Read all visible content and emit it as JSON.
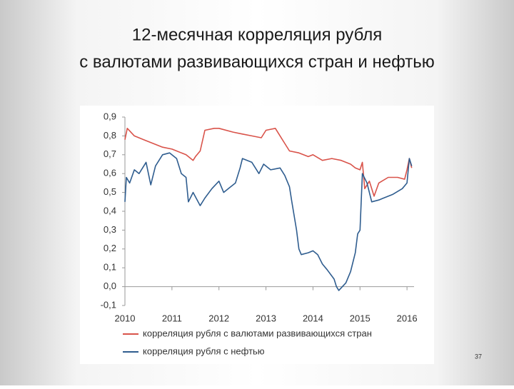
{
  "chart_data": {
    "type": "line",
    "title": [
      "12-месячная корреляция рубля",
      "с валютами развивающихся стран и нефтью"
    ],
    "xlim": [
      2010,
      2016.15
    ],
    "xticks": [
      2010,
      2011,
      2012,
      2013,
      2014,
      2015,
      2016
    ],
    "ylim": [
      -0.1,
      0.9
    ],
    "yticks": [
      {
        "value": 0.9,
        "label": "0,9"
      },
      {
        "value": 0.8,
        "label": "0,8"
      },
      {
        "value": 0.7,
        "label": "0,7"
      },
      {
        "value": 0.6,
        "label": "0,6"
      },
      {
        "value": 0.5,
        "label": "0,5"
      },
      {
        "value": 0.4,
        "label": "0,4"
      },
      {
        "value": 0.3,
        "label": "0,3"
      },
      {
        "value": 0.2,
        "label": "0,2"
      },
      {
        "value": 0.1,
        "label": "0,1"
      },
      {
        "value": 0,
        "label": "0,0"
      },
      {
        "value": -0.1,
        "label": "-0,1"
      }
    ],
    "grid": false,
    "series": [
      {
        "name": "корреляция рубля с валютами развивающихся стран",
        "color": "#d9534a",
        "x": [
          2010.0,
          2010.05,
          2010.2,
          2010.4,
          2010.6,
          2010.8,
          2011.0,
          2011.1,
          2011.3,
          2011.45,
          2011.5,
          2011.6,
          2011.7,
          2011.9,
          2012.0,
          2012.3,
          2012.5,
          2012.7,
          2012.9,
          2013.0,
          2013.2,
          2013.3,
          2013.4,
          2013.5,
          2013.7,
          2013.9,
          2014.0,
          2014.2,
          2014.4,
          2014.6,
          2014.8,
          2014.9,
          2015.0,
          2015.05,
          2015.1,
          2015.2,
          2015.3,
          2015.4,
          2015.6,
          2015.8,
          2015.95,
          2016.0,
          2016.05,
          2016.1
        ],
        "values": [
          0.78,
          0.84,
          0.8,
          0.78,
          0.76,
          0.74,
          0.73,
          0.72,
          0.7,
          0.67,
          0.69,
          0.72,
          0.83,
          0.84,
          0.84,
          0.82,
          0.81,
          0.8,
          0.79,
          0.83,
          0.84,
          0.8,
          0.76,
          0.72,
          0.71,
          0.69,
          0.7,
          0.67,
          0.68,
          0.67,
          0.65,
          0.63,
          0.62,
          0.66,
          0.52,
          0.56,
          0.48,
          0.55,
          0.58,
          0.58,
          0.57,
          0.62,
          0.68,
          0.63
        ]
      },
      {
        "name": "корреляция рубля с нефтью",
        "color": "#2f5d8f",
        "x": [
          2010.0,
          2010.03,
          2010.1,
          2010.2,
          2010.3,
          2010.45,
          2010.55,
          2010.65,
          2010.8,
          2010.95,
          2011.1,
          2011.2,
          2011.3,
          2011.35,
          2011.45,
          2011.6,
          2011.7,
          2011.85,
          2012.0,
          2012.1,
          2012.2,
          2012.35,
          2012.45,
          2012.5,
          2012.7,
          2012.85,
          2012.95,
          2013.1,
          2013.3,
          2013.4,
          2013.5,
          2013.55,
          2013.65,
          2013.7,
          2013.75,
          2013.9,
          2014.0,
          2014.1,
          2014.2,
          2014.3,
          2014.45,
          2014.5,
          2014.55,
          2014.7,
          2014.8,
          2014.9,
          2014.95,
          2015.0,
          2015.05,
          2015.15,
          2015.25,
          2015.4,
          2015.5,
          2015.7,
          2015.9,
          2016.0,
          2016.05,
          2016.1
        ],
        "values": [
          0.45,
          0.58,
          0.55,
          0.62,
          0.6,
          0.66,
          0.54,
          0.64,
          0.7,
          0.71,
          0.68,
          0.6,
          0.58,
          0.45,
          0.5,
          0.43,
          0.47,
          0.52,
          0.56,
          0.5,
          0.52,
          0.55,
          0.63,
          0.68,
          0.66,
          0.6,
          0.65,
          0.62,
          0.63,
          0.59,
          0.53,
          0.45,
          0.3,
          0.2,
          0.17,
          0.18,
          0.19,
          0.17,
          0.12,
          0.09,
          0.04,
          0.0,
          -0.02,
          0.02,
          0.08,
          0.18,
          0.28,
          0.3,
          0.6,
          0.55,
          0.45,
          0.46,
          0.47,
          0.49,
          0.52,
          0.55,
          0.68,
          0.64
        ]
      }
    ]
  },
  "page_number": "37"
}
